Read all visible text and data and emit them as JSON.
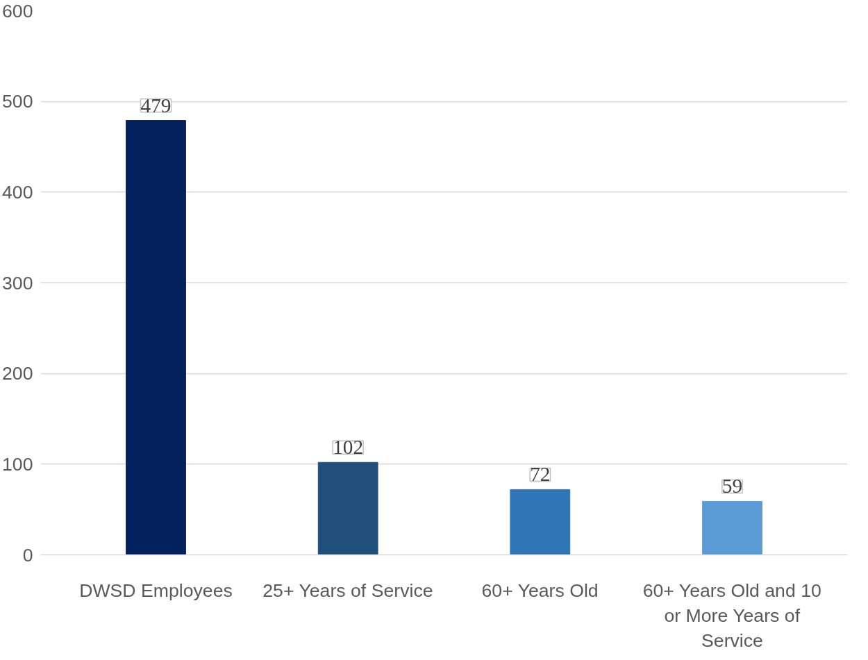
{
  "chart_data": {
    "type": "bar",
    "categories": [
      "DWSD Employees",
      "25+ Years of Service",
      "60+ Years Old",
      "60+ Years Old and 10 or More Years of Service"
    ],
    "values": [
      479,
      102,
      72,
      59
    ],
    "colors": [
      "#03215c",
      "#1f4e79",
      "#2e75b6",
      "#5b9bd5"
    ],
    "ylim": [
      0,
      600
    ],
    "yticks": [
      0,
      100,
      200,
      300,
      400,
      500,
      600
    ],
    "grid": "y",
    "data_labels": true
  }
}
